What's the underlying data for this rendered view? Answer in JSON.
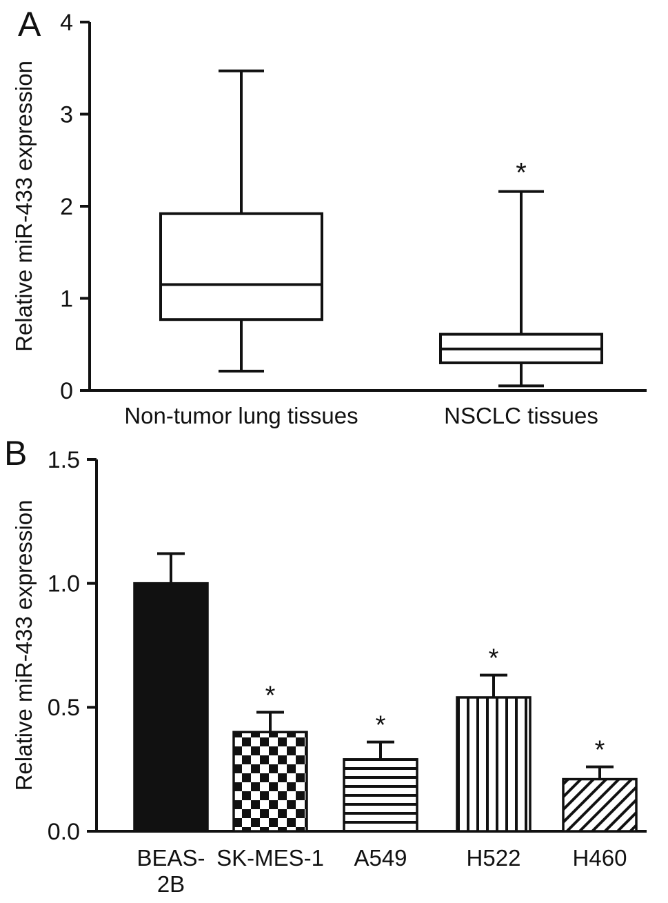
{
  "figure": {
    "panels": [
      {
        "letter": "A"
      },
      {
        "letter": "B"
      }
    ]
  },
  "chart_data": [
    {
      "type": "boxplot",
      "panel": "A",
      "title": "",
      "xlabel": "",
      "ylabel": "Relative miR-433 expression",
      "ylim": [
        0,
        4
      ],
      "ytick_values": [
        0,
        1,
        2,
        3,
        4
      ],
      "ytick_labels": [
        "0",
        "1",
        "2",
        "3",
        "4"
      ],
      "grid": false,
      "categories": [
        "Non-tumor lung tissues",
        "NSCLC tissues"
      ],
      "boxes": [
        {
          "category": "Non-tumor lung tissues",
          "whisker_low": 0.21,
          "q1": 0.77,
          "median": 1.15,
          "q3": 1.92,
          "whisker_high": 3.47,
          "annotation": ""
        },
        {
          "category": "NSCLC tissues",
          "whisker_low": 0.05,
          "q1": 0.3,
          "median": 0.45,
          "q3": 0.61,
          "whisker_high": 2.16,
          "annotation": "*"
        }
      ]
    },
    {
      "type": "bar",
      "panel": "B",
      "title": "",
      "xlabel": "",
      "ylabel": "Relative miR-433 expression",
      "ylim": [
        0,
        1.5
      ],
      "ytick_values": [
        0,
        0.5,
        1.0,
        1.5
      ],
      "ytick_labels": [
        "0.0",
        "0.5",
        "1.0",
        "1.5"
      ],
      "grid": false,
      "categories": [
        "BEAS-\n2B",
        "SK-MES-1",
        "A549",
        "H522",
        "H460"
      ],
      "values": [
        1.0,
        0.4,
        0.29,
        0.54,
        0.21
      ],
      "errors": [
        0.12,
        0.08,
        0.07,
        0.09,
        0.05
      ],
      "annotations": [
        "",
        "*",
        "*",
        "*",
        "*"
      ],
      "bar_patterns": [
        "solid",
        "checkerboard",
        "horizontal-lines",
        "vertical-lines",
        "diagonal-lines"
      ]
    }
  ]
}
